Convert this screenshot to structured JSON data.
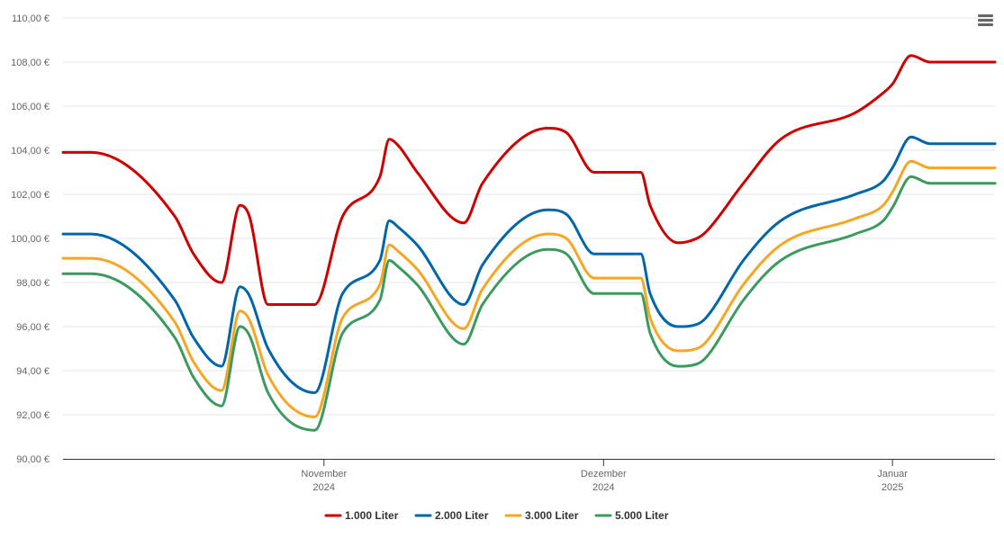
{
  "chart_data": {
    "type": "line",
    "title": "",
    "xlabel": "",
    "ylabel": "",
    "ylim": [
      90,
      110
    ],
    "grid": "horizontal",
    "legend_position": "bottom-center",
    "x_range": [
      "2024-10-04",
      "2025-01-12"
    ],
    "y_ticks": [
      {
        "value": 90,
        "label": "90,00 €"
      },
      {
        "value": 92,
        "label": "92,00 €"
      },
      {
        "value": 94,
        "label": "94,00 €"
      },
      {
        "value": 96,
        "label": "96,00 €"
      },
      {
        "value": 98,
        "label": "98,00 €"
      },
      {
        "value": 100,
        "label": "100,00 €"
      },
      {
        "value": 102,
        "label": "102,00 €"
      },
      {
        "value": 104,
        "label": "104,00 €"
      },
      {
        "value": 106,
        "label": "106,00 €"
      },
      {
        "value": 108,
        "label": "108,00 €"
      },
      {
        "value": 110,
        "label": "110,00 €"
      }
    ],
    "x_ticks": [
      {
        "date": "2024-11-01",
        "month": "November",
        "year": "2024"
      },
      {
        "date": "2024-12-01",
        "month": "Dezember",
        "year": "2024"
      },
      {
        "date": "2025-01-01",
        "month": "Januar",
        "year": "2025"
      }
    ],
    "x": [
      "2024-10-04",
      "2024-10-07",
      "2024-10-16",
      "2024-10-18",
      "2024-10-21",
      "2024-10-23",
      "2024-10-24",
      "2024-10-26",
      "2024-10-31",
      "2024-11-03",
      "2024-11-07",
      "2024-11-08",
      "2024-11-09",
      "2024-11-11",
      "2024-11-16",
      "2024-11-18",
      "2024-11-25",
      "2024-11-27",
      "2024-11-30",
      "2024-12-01",
      "2024-12-03",
      "2024-12-05",
      "2024-12-06",
      "2024-12-09",
      "2024-12-11",
      "2024-12-12",
      "2024-12-16",
      "2024-12-20",
      "2024-12-28",
      "2024-12-31",
      "2025-01-01",
      "2025-01-03",
      "2025-01-05",
      "2025-01-12"
    ],
    "series": [
      {
        "name": "1.000 Liter",
        "color": "#cc0000",
        "values": [
          103.9,
          103.9,
          101.0,
          99.3,
          98.0,
          101.5,
          101.0,
          97.0,
          97.0,
          101.0,
          102.8,
          104.5,
          104.2,
          103.0,
          100.7,
          102.5,
          105.0,
          104.8,
          103.0,
          103.0,
          103.0,
          103.0,
          101.5,
          99.8,
          100.0,
          100.3,
          102.5,
          104.5,
          105.7,
          106.6,
          107.0,
          108.3,
          108.0,
          108.0
        ]
      },
      {
        "name": "2.000 Liter",
        "color": "#0066aa",
        "values": [
          100.2,
          100.2,
          97.2,
          95.5,
          94.2,
          97.8,
          97.4,
          95.0,
          93.0,
          97.5,
          99.0,
          100.8,
          100.5,
          99.7,
          97.0,
          98.8,
          101.3,
          101.1,
          99.3,
          99.3,
          99.3,
          99.3,
          97.5,
          96.0,
          96.1,
          96.4,
          99.0,
          100.8,
          102.0,
          102.6,
          103.2,
          104.6,
          104.3,
          104.3
        ]
      },
      {
        "name": "3.000 Liter",
        "color": "#f5a623",
        "values": [
          99.1,
          99.1,
          96.2,
          94.4,
          93.1,
          96.7,
          96.3,
          93.8,
          91.9,
          96.4,
          97.9,
          99.7,
          99.4,
          98.6,
          95.9,
          97.7,
          100.2,
          100.0,
          98.2,
          98.2,
          98.2,
          98.2,
          96.4,
          94.9,
          95.0,
          95.3,
          97.9,
          99.7,
          100.9,
          101.5,
          102.1,
          103.5,
          103.2,
          103.2
        ]
      },
      {
        "name": "5.000 Liter",
        "color": "#3c9a5f",
        "values": [
          98.4,
          98.4,
          95.5,
          93.7,
          92.4,
          96.0,
          95.6,
          93.0,
          91.3,
          95.7,
          97.2,
          99.0,
          98.7,
          97.9,
          95.2,
          97.0,
          99.5,
          99.3,
          97.5,
          97.5,
          97.5,
          97.5,
          95.7,
          94.2,
          94.3,
          94.6,
          97.2,
          99.0,
          100.2,
          100.8,
          101.4,
          102.8,
          102.5,
          102.5
        ]
      }
    ]
  },
  "menu_icon": "hamburger-menu-icon"
}
